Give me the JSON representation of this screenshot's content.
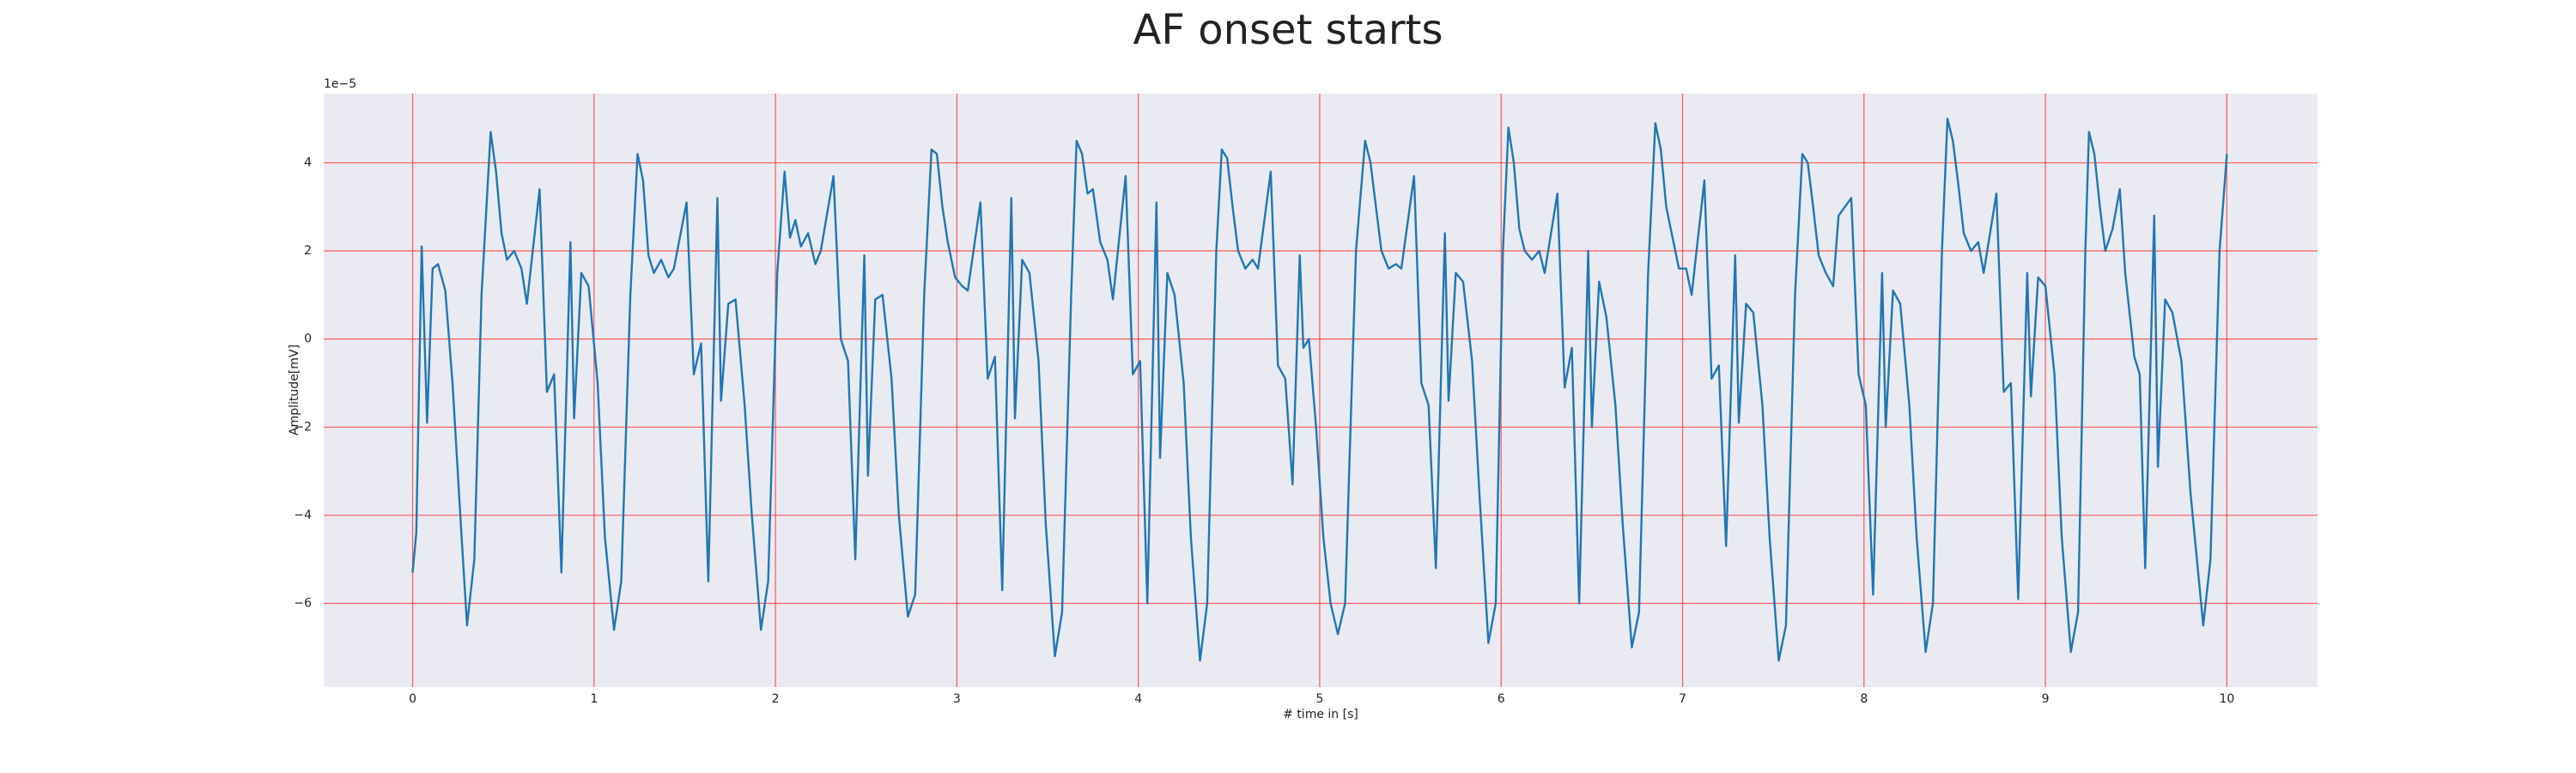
{
  "chart_data": {
    "type": "line",
    "title": "AF onset starts",
    "xlabel": "# time in [s]",
    "ylabel": "Amplitude[mV]",
    "y_offset_label": "1e−5",
    "color": "#1f77b4",
    "grid": true,
    "grid_color": "#ff3333",
    "background": "#eaeaf2",
    "xlim": [
      -0.49,
      10.5
    ],
    "ylim": [
      -7.9,
      5.57
    ],
    "xticks": [
      0,
      1,
      2,
      3,
      4,
      5,
      6,
      7,
      8,
      9,
      10
    ],
    "yticks": [
      {
        "value": -6,
        "label": "−6"
      },
      {
        "value": -4,
        "label": "−4"
      },
      {
        "value": -2,
        "label": "−2"
      },
      0,
      2,
      4
    ],
    "x": [
      0.0,
      0.02,
      0.05,
      0.08,
      0.11,
      0.14,
      0.18,
      0.22,
      0.27,
      0.3,
      0.34,
      0.38,
      0.43,
      0.46,
      0.49,
      0.52,
      0.56,
      0.6,
      0.63,
      0.7,
      0.74,
      0.78,
      0.82,
      0.87,
      0.89,
      0.93,
      0.97,
      1.02,
      1.06,
      1.11,
      1.15,
      1.2,
      1.24,
      1.27,
      1.3,
      1.33,
      1.37,
      1.41,
      1.44,
      1.51,
      1.55,
      1.59,
      1.63,
      1.68,
      1.7,
      1.74,
      1.78,
      1.83,
      1.87,
      1.92,
      1.96,
      2.01,
      2.05,
      2.08,
      2.11,
      2.14,
      2.18,
      2.22,
      2.25,
      2.32,
      2.36,
      2.4,
      2.44,
      2.49,
      2.51,
      2.55,
      2.59,
      2.64,
      2.68,
      2.73,
      2.77,
      2.82,
      2.86,
      2.89,
      2.92,
      2.95,
      2.99,
      3.03,
      3.06,
      3.13,
      3.17,
      3.21,
      3.25,
      3.3,
      3.32,
      3.36,
      3.4,
      3.45,
      3.49,
      3.54,
      3.58,
      3.63,
      3.66,
      3.69,
      3.72,
      3.75,
      3.79,
      3.83,
      3.86,
      3.93,
      3.97,
      4.01,
      4.05,
      4.1,
      4.12,
      4.16,
      4.2,
      4.25,
      4.29,
      4.34,
      4.38,
      4.43,
      4.46,
      4.49,
      4.52,
      4.55,
      4.59,
      4.63,
      4.66,
      4.73,
      4.77,
      4.81,
      4.85,
      4.89,
      4.91,
      4.94,
      4.98,
      5.02,
      5.06,
      5.1,
      5.14,
      5.2,
      5.25,
      5.28,
      5.31,
      5.34,
      5.38,
      5.42,
      5.45,
      5.52,
      5.56,
      5.6,
      5.64,
      5.69,
      5.71,
      5.75,
      5.79,
      5.84,
      5.88,
      5.93,
      5.97,
      6.01,
      6.04,
      6.07,
      6.1,
      6.13,
      6.17,
      6.21,
      6.24,
      6.31,
      6.35,
      6.39,
      6.43,
      6.48,
      6.5,
      6.54,
      6.58,
      6.63,
      6.67,
      6.72,
      6.76,
      6.81,
      6.85,
      6.88,
      6.91,
      6.94,
      6.98,
      7.02,
      7.05,
      7.12,
      7.16,
      7.2,
      7.24,
      7.29,
      7.31,
      7.35,
      7.39,
      7.44,
      7.48,
      7.53,
      7.57,
      7.62,
      7.66,
      7.69,
      7.72,
      7.75,
      7.79,
      7.83,
      7.86,
      7.93,
      7.97,
      8.01,
      8.05,
      8.1,
      8.12,
      8.16,
      8.2,
      8.25,
      8.29,
      8.34,
      8.38,
      8.43,
      8.46,
      8.49,
      8.52,
      8.55,
      8.59,
      8.63,
      8.66,
      8.73,
      8.77,
      8.81,
      8.85,
      8.9,
      8.92,
      8.96,
      9.0,
      9.05,
      9.09,
      9.14,
      9.18,
      9.22,
      9.24,
      9.27,
      9.3,
      9.33,
      9.37,
      9.41,
      9.44,
      9.49,
      9.52,
      9.55,
      9.6,
      9.62,
      9.66,
      9.7,
      9.75,
      9.8,
      9.87,
      9.91,
      9.96,
      10.0
    ],
    "values": [
      -5.3,
      -4.4,
      2.1,
      -1.9,
      1.6,
      1.7,
      1.1,
      -1.0,
      -4.5,
      -6.5,
      -5.0,
      1.0,
      4.7,
      3.8,
      2.4,
      1.8,
      2.0,
      1.6,
      0.8,
      3.4,
      -1.2,
      -0.8,
      -5.3,
      2.2,
      -1.8,
      1.5,
      1.2,
      -1.0,
      -4.5,
      -6.6,
      -5.5,
      1.0,
      4.2,
      3.6,
      1.9,
      1.5,
      1.8,
      1.4,
      1.6,
      3.1,
      -0.8,
      -0.1,
      -5.5,
      3.2,
      -1.4,
      0.8,
      0.9,
      -1.5,
      -4.0,
      -6.6,
      -5.5,
      1.5,
      3.8,
      2.3,
      2.7,
      2.1,
      2.4,
      1.7,
      2.0,
      3.7,
      0.0,
      -0.5,
      -5.0,
      1.9,
      -3.1,
      0.9,
      1.0,
      -0.9,
      -4.0,
      -6.3,
      -5.8,
      1.0,
      4.3,
      4.2,
      3.0,
      2.2,
      1.4,
      1.2,
      1.1,
      3.1,
      -0.9,
      -0.4,
      -5.7,
      3.2,
      -1.8,
      1.8,
      1.5,
      -0.5,
      -4.2,
      -7.2,
      -6.2,
      1.0,
      4.5,
      4.2,
      3.3,
      3.4,
      2.2,
      1.8,
      0.9,
      3.7,
      -0.8,
      -0.5,
      -6.0,
      3.1,
      -2.7,
      1.5,
      1.0,
      -1.0,
      -4.5,
      -7.3,
      -6.0,
      2.0,
      4.3,
      4.1,
      3.0,
      2.0,
      1.6,
      1.8,
      1.6,
      3.8,
      -0.6,
      -0.9,
      -3.3,
      1.9,
      -0.2,
      0.0,
      -2.0,
      -4.5,
      -6.0,
      -6.7,
      -6.0,
      2.0,
      4.5,
      4.0,
      3.0,
      2.0,
      1.6,
      1.7,
      1.6,
      3.7,
      -1.0,
      -1.5,
      -5.2,
      2.4,
      -1.4,
      1.5,
      1.3,
      -0.5,
      -3.5,
      -6.9,
      -6.0,
      2.0,
      4.8,
      4.0,
      2.5,
      2.0,
      1.8,
      2.0,
      1.5,
      3.3,
      -1.1,
      -0.2,
      -6.0,
      2.0,
      -2.0,
      1.3,
      0.5,
      -1.5,
      -4.2,
      -7.0,
      -6.2,
      1.5,
      4.9,
      4.3,
      3.0,
      2.4,
      1.6,
      1.6,
      1.0,
      3.6,
      -0.9,
      -0.6,
      -4.7,
      1.9,
      -1.9,
      0.8,
      0.6,
      -1.5,
      -4.5,
      -7.3,
      -6.5,
      1.0,
      4.2,
      4.0,
      3.0,
      1.9,
      1.5,
      1.2,
      2.8,
      3.2,
      -0.8,
      -1.5,
      -5.8,
      1.5,
      -2.0,
      1.1,
      0.8,
      -1.5,
      -4.5,
      -7.1,
      -6.0,
      2.0,
      5.0,
      4.5,
      3.5,
      2.4,
      2.0,
      2.2,
      1.5,
      3.3,
      -1.2,
      -1.0,
      -5.9,
      1.5,
      -1.3,
      1.4,
      1.2,
      -0.8,
      -4.5,
      -7.1,
      -6.2,
      2.0,
      4.7,
      4.2,
      3.0,
      2.0,
      2.5,
      3.4,
      1.5,
      -0.4,
      -0.8,
      -5.2,
      2.8,
      -2.9,
      0.9,
      0.6,
      -0.5,
      -3.5,
      -6.5,
      -5.0,
      2.0,
      4.2
    ]
  }
}
